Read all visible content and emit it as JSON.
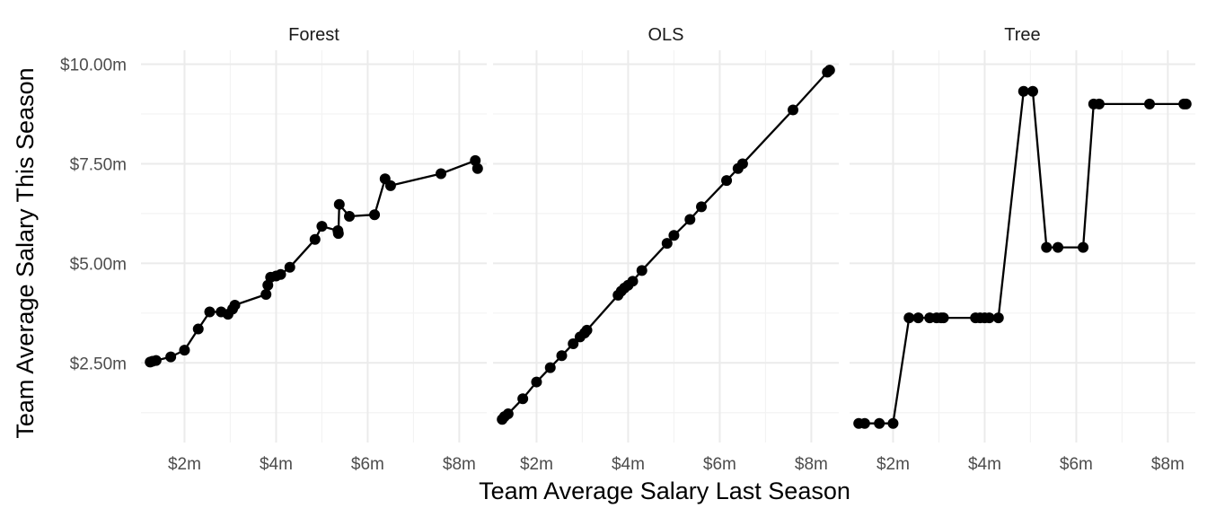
{
  "chart_data": {
    "type": "line",
    "xlabel": "Team Average Salary Last Season",
    "ylabel": "Team Average Salary This Season",
    "xlim": [
      1.05,
      8.6
    ],
    "ylim": [
      0.5,
      10.35
    ],
    "x_ticks": [
      2,
      4,
      6,
      8
    ],
    "x_tick_labels": [
      "$2m",
      "$4m",
      "$6m",
      "$8m"
    ],
    "y_ticks": [
      2.5,
      5,
      7.5,
      10
    ],
    "y_tick_labels": [
      "$2.50m",
      "$5.00m",
      "$7.50m",
      "$10.00m"
    ],
    "grid": true,
    "facets": [
      {
        "name": "Forest",
        "points": [
          [
            1.25,
            2.52
          ],
          [
            1.3,
            2.54
          ],
          [
            1.38,
            2.56
          ],
          [
            1.7,
            2.65
          ],
          [
            2.0,
            2.82
          ],
          [
            2.3,
            3.35
          ],
          [
            2.55,
            3.78
          ],
          [
            2.8,
            3.78
          ],
          [
            2.95,
            3.72
          ],
          [
            3.05,
            3.85
          ],
          [
            3.1,
            3.95
          ],
          [
            3.78,
            4.22
          ],
          [
            3.82,
            4.45
          ],
          [
            3.88,
            4.65
          ],
          [
            4.0,
            4.68
          ],
          [
            4.1,
            4.72
          ],
          [
            4.3,
            4.9
          ],
          [
            4.85,
            5.6
          ],
          [
            5.0,
            5.93
          ],
          [
            5.35,
            5.82
          ],
          [
            5.36,
            5.75
          ],
          [
            5.38,
            6.48
          ],
          [
            5.6,
            6.18
          ],
          [
            6.15,
            6.22
          ],
          [
            6.38,
            7.12
          ],
          [
            6.5,
            6.95
          ],
          [
            7.6,
            7.25
          ],
          [
            8.35,
            7.58
          ],
          [
            8.4,
            7.38
          ]
        ]
      },
      {
        "name": "OLS",
        "points": [
          [
            1.25,
            1.08
          ],
          [
            1.3,
            1.15
          ],
          [
            1.38,
            1.22
          ],
          [
            1.7,
            1.6
          ],
          [
            2.0,
            2.02
          ],
          [
            2.3,
            2.38
          ],
          [
            2.55,
            2.68
          ],
          [
            2.8,
            2.98
          ],
          [
            2.95,
            3.15
          ],
          [
            3.05,
            3.25
          ],
          [
            3.1,
            3.32
          ],
          [
            3.78,
            4.2
          ],
          [
            3.85,
            4.3
          ],
          [
            3.92,
            4.38
          ],
          [
            4.0,
            4.45
          ],
          [
            4.1,
            4.55
          ],
          [
            4.3,
            4.82
          ],
          [
            4.85,
            5.5
          ],
          [
            5.0,
            5.7
          ],
          [
            5.35,
            6.1
          ],
          [
            5.6,
            6.42
          ],
          [
            6.15,
            7.08
          ],
          [
            6.4,
            7.38
          ],
          [
            6.5,
            7.5
          ],
          [
            7.6,
            8.85
          ],
          [
            8.35,
            9.8
          ],
          [
            8.4,
            9.85
          ]
        ]
      },
      {
        "name": "Tree",
        "points": [
          [
            1.25,
            0.98
          ],
          [
            1.38,
            0.98
          ],
          [
            1.7,
            0.98
          ],
          [
            2.0,
            0.98
          ],
          [
            2.35,
            3.63
          ],
          [
            2.55,
            3.63
          ],
          [
            2.8,
            3.63
          ],
          [
            2.95,
            3.63
          ],
          [
            3.05,
            3.63
          ],
          [
            3.1,
            3.63
          ],
          [
            3.8,
            3.63
          ],
          [
            3.9,
            3.63
          ],
          [
            4.0,
            3.63
          ],
          [
            4.1,
            3.63
          ],
          [
            4.3,
            3.63
          ],
          [
            4.85,
            9.32
          ],
          [
            5.05,
            9.32
          ],
          [
            5.35,
            5.4
          ],
          [
            5.6,
            5.4
          ],
          [
            6.15,
            5.4
          ],
          [
            6.38,
            9.0
          ],
          [
            6.5,
            9.0
          ],
          [
            7.6,
            9.0
          ],
          [
            8.35,
            9.0
          ],
          [
            8.4,
            9.0
          ]
        ]
      }
    ]
  }
}
